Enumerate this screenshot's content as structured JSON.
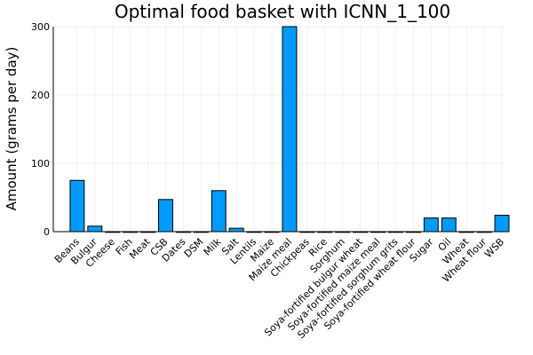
{
  "chart_data": {
    "type": "bar",
    "title": "Optimal food basket with ICNN_1_100",
    "xlabel": "",
    "ylabel": "Amount (grams per day)",
    "ylim": [
      0,
      300
    ],
    "yticks": [
      0,
      100,
      200,
      300
    ],
    "grid": true,
    "legend": "none",
    "bar_color": "#009af9",
    "bar_edge_color": "#000000",
    "categories": [
      "Beans",
      "Bulgur",
      "Cheese",
      "Fish",
      "Meat",
      "CSB",
      "Dates",
      "DSM",
      "Milk",
      "Salt",
      "Lentils",
      "Maize",
      "Maize meal",
      "Chickpeas",
      "Rice",
      "Sorghum",
      "Soya-fortified bulgur wheat",
      "Soya-fortified maize meal",
      "Soya-fortified sorghum grits",
      "Soya-fortified wheat flour",
      "Sugar",
      "Oil",
      "Wheat",
      "Wheat flour",
      "WSB"
    ],
    "values": [
      75,
      8,
      0,
      0,
      0,
      47,
      0,
      0,
      60,
      5,
      0,
      0,
      300,
      0,
      0,
      0,
      0,
      0,
      0,
      0,
      20,
      20,
      0,
      0,
      24
    ]
  }
}
